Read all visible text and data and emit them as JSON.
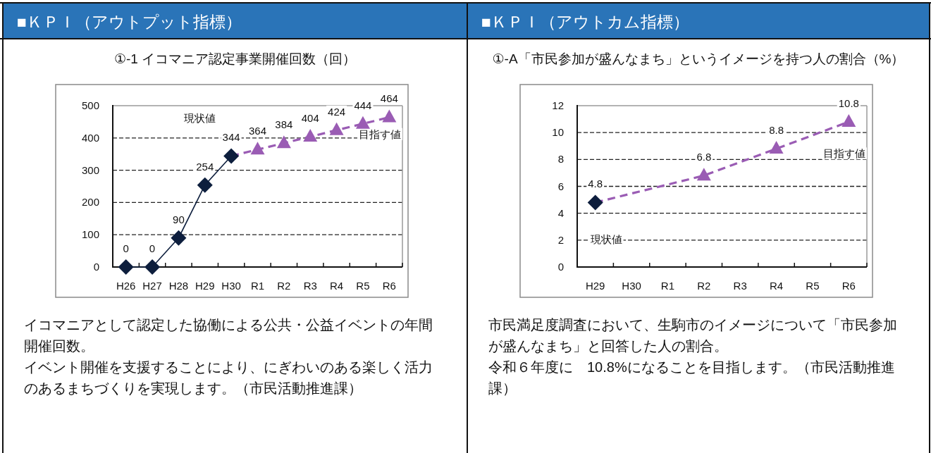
{
  "chart_data": [
    {
      "type": "line",
      "title": "■ＫＰＩ（アウトプット指標）",
      "subtitle": "①-1 イコマニア認定事業開催回数（回）",
      "categories": [
        "H26",
        "H27",
        "H28",
        "H29",
        "H30",
        "R1",
        "R2",
        "R3",
        "R4",
        "R5",
        "R6"
      ],
      "series": [
        {
          "name": "現状値",
          "color": "#0d1e3d",
          "marker": "diamond",
          "line_style": "solid",
          "values": [
            0,
            0,
            90,
            254,
            344,
            null,
            null,
            null,
            null,
            null,
            null
          ],
          "value_labels": [
            "0",
            "0",
            "90",
            "254",
            "344",
            null,
            null,
            null,
            null,
            null,
            null
          ]
        },
        {
          "name": "目指す値",
          "color": "#9a5cb4",
          "marker": "triangle",
          "line_style": "dashed",
          "values": [
            null,
            null,
            null,
            null,
            344,
            364,
            384,
            404,
            424,
            444,
            464
          ],
          "value_labels": [
            null,
            null,
            null,
            null,
            null,
            "364",
            "384",
            "404",
            "424",
            "444",
            "464"
          ]
        }
      ],
      "ylim": [
        0,
        500
      ],
      "yticks": [
        0,
        100,
        200,
        300,
        400,
        500
      ],
      "grid": "y",
      "annotations": [
        "イコマニアとして認定した協働による公共・公益イベントの年間開催回数。",
        "イベント開催を支援することにより、にぎわいのある楽しく活力のあるまちづくりを実現します。（市民活動推進課）"
      ]
    },
    {
      "type": "line",
      "title": "■ＫＰＩ（アウトカム指標）",
      "subtitle": "①-A「市民参加が盛んなまち」というイメージを持つ人の割合（%）",
      "categories": [
        "H29",
        "H30",
        "R1",
        "R2",
        "R3",
        "R4",
        "R5",
        "R6"
      ],
      "series": [
        {
          "name": "現状値",
          "color": "#0d1e3d",
          "marker": "diamond",
          "line_style": "solid",
          "values": [
            4.8,
            null,
            null,
            null,
            null,
            null,
            null,
            null
          ],
          "value_labels": [
            "4.8",
            null,
            null,
            null,
            null,
            null,
            null,
            null
          ]
        },
        {
          "name": "目指す値",
          "color": "#9a5cb4",
          "marker": "triangle",
          "line_style": "dashed",
          "values": [
            4.8,
            null,
            null,
            6.8,
            null,
            8.8,
            null,
            10.8
          ],
          "value_labels": [
            null,
            null,
            null,
            "6.8",
            null,
            "8.8",
            null,
            "10.8"
          ]
        }
      ],
      "ylim": [
        0,
        12
      ],
      "yticks": [
        0,
        2,
        4,
        6,
        8,
        10,
        12
      ],
      "grid": "y",
      "annotations": [
        "市民満足度調査において、生駒市のイメージについて「市民参加が盛んなまち」と回答した人の割合。",
        "令和６年度に　10.8%になることを目指します。（市民活動推進課）"
      ]
    }
  ]
}
